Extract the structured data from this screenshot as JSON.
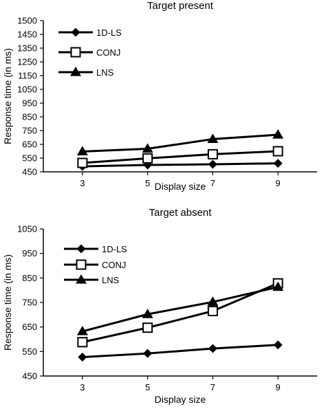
{
  "chart_data": [
    {
      "type": "line",
      "title": "Target present",
      "xlabel": "Display size",
      "ylabel": "Response time (in ms)",
      "x": [
        3,
        5,
        7,
        9
      ],
      "ylim": [
        450,
        1500
      ],
      "yticks": [
        450,
        550,
        650,
        750,
        850,
        950,
        1050,
        1150,
        1250,
        1350,
        1450,
        1500
      ],
      "ytick_labels": [
        "450",
        "550",
        "650",
        "750",
        "850",
        "950",
        "1050",
        "1150",
        "1250",
        "1350",
        "1450",
        "1500"
      ],
      "axis_break": {
        "from": 750,
        "to": 1450
      },
      "legend": "top-left",
      "grid": false,
      "series": [
        {
          "name": "1D-LS",
          "marker": "diamond",
          "values": [
            490,
            500,
            505,
            512
          ]
        },
        {
          "name": "CONJ",
          "marker": "square-open",
          "values": [
            515,
            548,
            578,
            600
          ]
        },
        {
          "name": "LNS",
          "marker": "triangle",
          "values": [
            598,
            618,
            688,
            720
          ]
        }
      ]
    },
    {
      "type": "line",
      "title": "Target absent",
      "xlabel": "Display size",
      "ylabel": "Response time (in ms)",
      "x": [
        3,
        5,
        7,
        9
      ],
      "ylim": [
        450,
        1050
      ],
      "yticks": [
        450,
        550,
        650,
        750,
        850,
        950,
        1050
      ],
      "ytick_labels": [
        "450",
        "550",
        "650",
        "750",
        "850",
        "950",
        "1050"
      ],
      "legend": "top-left",
      "grid": false,
      "series": [
        {
          "name": "1D-LS",
          "marker": "diamond",
          "values": [
            527,
            542,
            562,
            577
          ]
        },
        {
          "name": "CONJ",
          "marker": "square-open",
          "values": [
            588,
            647,
            715,
            828
          ]
        },
        {
          "name": "LNS",
          "marker": "triangle",
          "values": [
            632,
            702,
            752,
            813
          ]
        }
      ]
    }
  ]
}
